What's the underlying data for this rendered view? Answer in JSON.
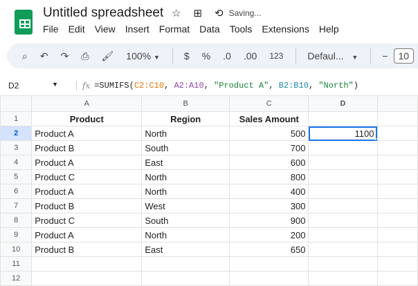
{
  "app": {
    "title": "Untitled spreadsheet",
    "status": "Saving..."
  },
  "menu": [
    "File",
    "Edit",
    "View",
    "Insert",
    "Format",
    "Data",
    "Tools",
    "Extensions",
    "Help"
  ],
  "toolbar": {
    "zoom": "100%",
    "currency": "$",
    "percent": "%",
    "dec_decrease": ".0",
    "dec_increase": ".00",
    "number_format": "123",
    "font": "Defaul...",
    "font_size": "10"
  },
  "formula_bar": {
    "cell": "D2",
    "fx": "fx",
    "formula": {
      "prefix": "=SUMIFS(",
      "r1": "C2:C10",
      "r2": "A2:A10",
      "s1": "\"Product A\"",
      "r3": "B2:B10",
      "s2": "\"North\"",
      "suffix": ")"
    }
  },
  "colors": {
    "r1": "#e37400",
    "r2": "#8e44ad",
    "r3": "#1e88a8",
    "str": "#188038",
    "accent": "#1a73e8"
  },
  "columns": [
    "A",
    "B",
    "C",
    "D"
  ],
  "rows": [
    [
      "Product",
      "Region",
      "Sales Amount",
      ""
    ],
    [
      "Product A",
      "North",
      "500",
      "1100"
    ],
    [
      "Product B",
      "South",
      "700",
      ""
    ],
    [
      "Product A",
      "East",
      "600",
      ""
    ],
    [
      "Product C",
      "North",
      "800",
      ""
    ],
    [
      "Product A",
      "North",
      "400",
      ""
    ],
    [
      "Product B",
      "West",
      "300",
      ""
    ],
    [
      "Product C",
      "South",
      "900",
      ""
    ],
    [
      "Product A",
      "North",
      "200",
      ""
    ],
    [
      "Product B",
      "East",
      "650",
      ""
    ],
    [
      "",
      "",
      "",
      ""
    ],
    [
      "",
      "",
      "",
      ""
    ]
  ]
}
